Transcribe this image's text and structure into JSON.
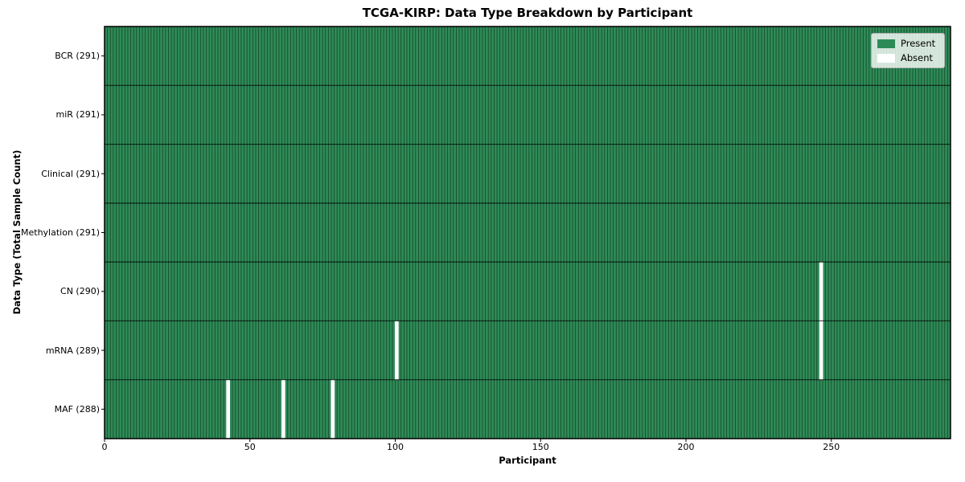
{
  "chart_data": {
    "type": "heatmap",
    "title": "TCGA-KIRP: Data Type Breakdown by Participant",
    "xlabel": "Participant",
    "ylabel": "Data Type (Total Sample Count)",
    "n_participants": 291,
    "x_range": [
      0,
      291
    ],
    "x_ticks": [
      0,
      50,
      100,
      150,
      200,
      250
    ],
    "rows": [
      {
        "label": "BCR (291)",
        "data_type": "BCR",
        "total_samples": 291,
        "absent_participants": []
      },
      {
        "label": "miR (291)",
        "data_type": "miR",
        "total_samples": 291,
        "absent_participants": []
      },
      {
        "label": "Clinical (291)",
        "data_type": "Clinical",
        "total_samples": 291,
        "absent_participants": []
      },
      {
        "label": "Methylation (291)",
        "data_type": "Methylation",
        "total_samples": 291,
        "absent_participants": []
      },
      {
        "label": "CN (290)",
        "data_type": "CN",
        "total_samples": 290,
        "absent_participants": [
          246
        ]
      },
      {
        "label": "mRNA (289)",
        "data_type": "mRNA",
        "total_samples": 289,
        "absent_participants": [
          100,
          246
        ]
      },
      {
        "label": "MAF (288)",
        "data_type": "MAF",
        "total_samples": 288,
        "absent_participants": [
          42,
          61,
          78
        ]
      }
    ],
    "legend": [
      {
        "label": "Present",
        "color": "#2e8b57"
      },
      {
        "label": "Absent",
        "color": "#ffffff"
      }
    ],
    "legend_position": "upper right",
    "grid": "cell-edges",
    "colors": {
      "present": "#2e8b57",
      "absent": "#ffffff",
      "cell_edge": "rgba(0,0,0,0.5)",
      "row_separator": "rgba(0,0,0,0.7)",
      "plot_border": "#000000",
      "background": "#ffffff"
    }
  }
}
